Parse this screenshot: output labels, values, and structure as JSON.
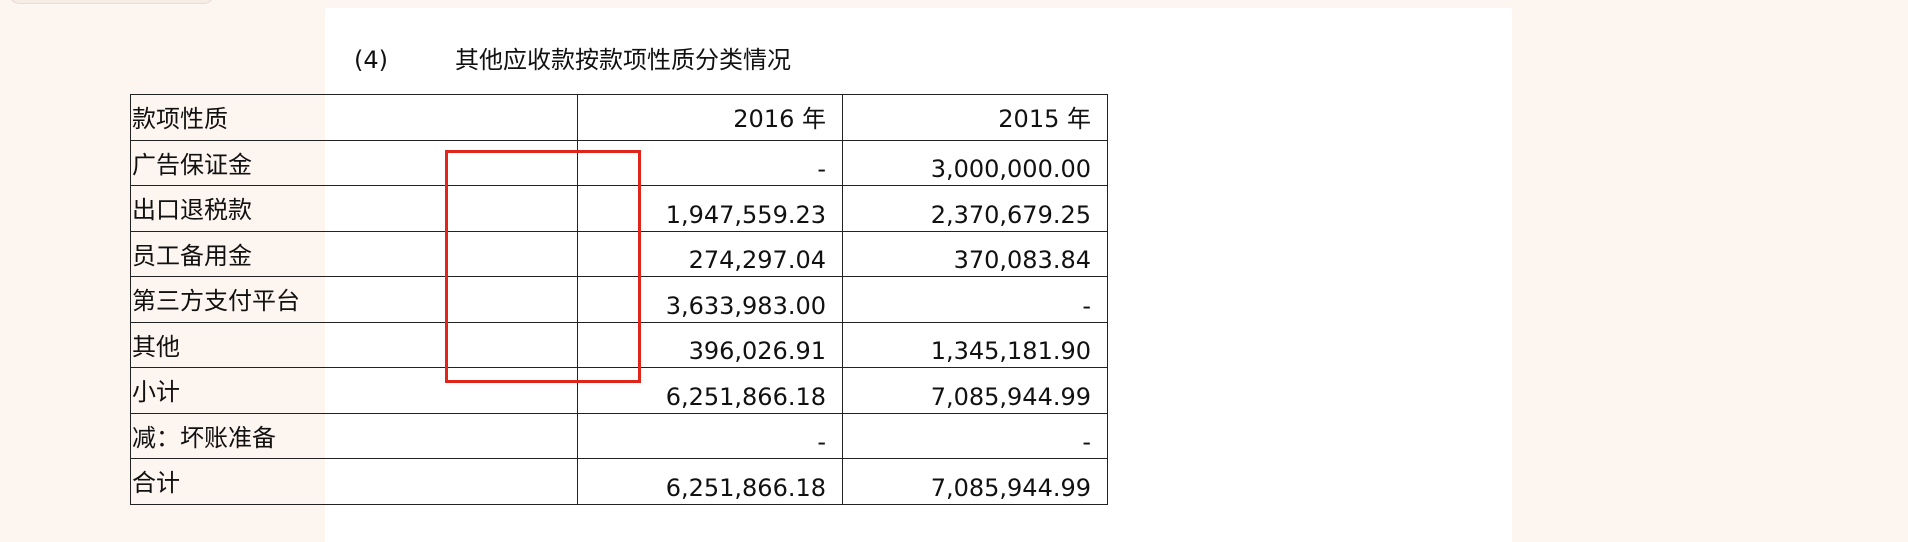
{
  "section": {
    "number": "(4)",
    "title": "其他应收款按款项性质分类情况"
  },
  "table": {
    "headers": [
      "款项性质",
      "2016 年",
      "2015 年"
    ],
    "rows": [
      {
        "label": "广告保证金",
        "y2016": "-",
        "y2015": "3,000,000.00"
      },
      {
        "label": "出口退税款",
        "y2016": "1,947,559.23",
        "y2015": "2,370,679.25"
      },
      {
        "label": "员工备用金",
        "y2016": "274,297.04",
        "y2015": "370,083.84"
      },
      {
        "label": "第三方支付平台",
        "y2016": "3,633,983.00",
        "y2015": "-"
      },
      {
        "label": "其他",
        "y2016": "396,026.91",
        "y2015": "1,345,181.90"
      },
      {
        "label": "小计",
        "y2016": "6,251,866.18",
        "y2015": "7,085,944.99"
      },
      {
        "label": "减：坏账准备",
        "y2016": "-",
        "y2015": "-"
      },
      {
        "label": "合计",
        "y2016": "6,251,866.18",
        "y2015": "7,085,944.99"
      }
    ]
  },
  "colors": {
    "highlight": "#e0261b",
    "background": "#fdf5f0"
  }
}
